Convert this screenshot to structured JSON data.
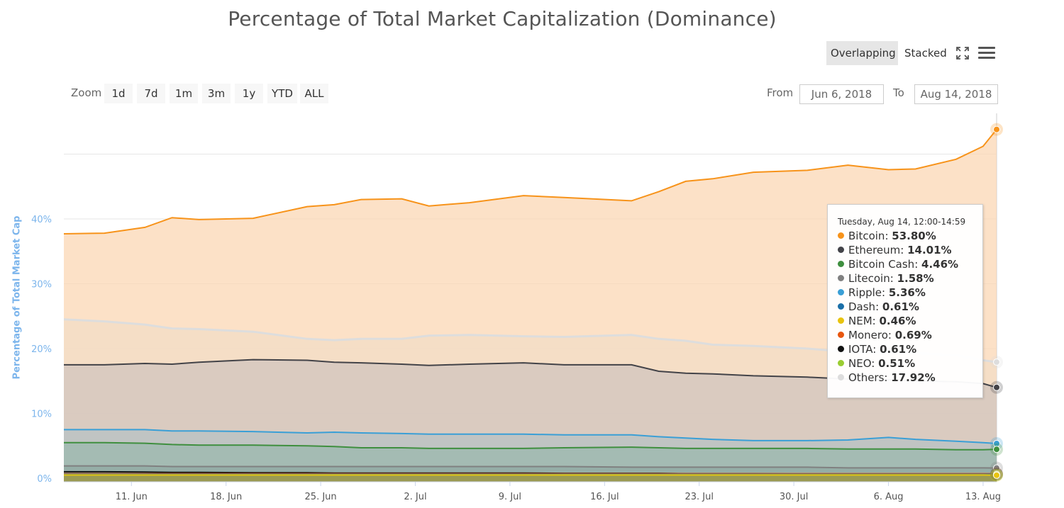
{
  "title": "Percentage of Total Market Capitalization (Dominance)",
  "modes": [
    {
      "label": "Overlapping",
      "active": true
    },
    {
      "label": "Stacked",
      "active": false
    }
  ],
  "zoom": {
    "label": "Zoom",
    "buttons": [
      "1d",
      "7d",
      "1m",
      "3m",
      "1y",
      "YTD",
      "ALL"
    ]
  },
  "range": {
    "from_label": "From",
    "from_value": "Jun 6, 2018",
    "to_label": "To",
    "to_value": "Aug 14, 2018"
  },
  "icons": [
    "fullscreen-icon",
    "menu-icon"
  ],
  "chart_data": {
    "type": "area",
    "ylabel": "Percentage of Total Market Cap",
    "ylim": [
      0,
      55
    ],
    "yticks": [
      "0%",
      "10%",
      "20%",
      "30%",
      "40%"
    ],
    "ytick_values": [
      0,
      10,
      20,
      30,
      40
    ],
    "x_start": "2018-06-06",
    "x_end": "2018-08-14",
    "xticks": [
      "11. Jun",
      "18. Jun",
      "25. Jun",
      "2. Jul",
      "9. Jul",
      "16. Jul",
      "23. Jul",
      "30. Jul",
      "6. Aug",
      "13. Aug"
    ],
    "xtick_dates": [
      "2018-06-11",
      "2018-06-18",
      "2018-06-25",
      "2018-07-02",
      "2018-07-09",
      "2018-07-16",
      "2018-07-23",
      "2018-07-30",
      "2018-08-06",
      "2018-08-13"
    ],
    "grid": true,
    "x": [
      "2018-06-06",
      "2018-06-09",
      "2018-06-12",
      "2018-06-14",
      "2018-06-16",
      "2018-06-20",
      "2018-06-24",
      "2018-06-26",
      "2018-06-28",
      "2018-07-01",
      "2018-07-03",
      "2018-07-06",
      "2018-07-10",
      "2018-07-13",
      "2018-07-18",
      "2018-07-20",
      "2018-07-22",
      "2018-07-24",
      "2018-07-27",
      "2018-07-31",
      "2018-08-03",
      "2018-08-06",
      "2018-08-08",
      "2018-08-11",
      "2018-08-13",
      "2018-08-14"
    ],
    "series": [
      {
        "name": "Bitcoin",
        "color": "#f7931a",
        "fill": "#fbd7b4",
        "values": [
          37.7,
          37.8,
          38.7,
          40.2,
          39.9,
          40.1,
          41.9,
          42.2,
          43.0,
          43.1,
          42.0,
          42.5,
          43.6,
          43.3,
          42.8,
          44.2,
          45.8,
          46.2,
          47.2,
          47.5,
          48.3,
          47.6,
          47.7,
          49.2,
          51.2,
          53.8
        ]
      },
      {
        "name": "Others",
        "color": "#dddddd",
        "fill": "#f3dcc6",
        "values": [
          24.5,
          24.2,
          23.7,
          23.1,
          23.0,
          22.6,
          21.5,
          21.3,
          21.5,
          21.5,
          22.0,
          22.1,
          21.9,
          21.8,
          22.1,
          21.5,
          21.2,
          20.6,
          20.4,
          20.0,
          19.5,
          19.4,
          19.3,
          19.0,
          18.2,
          17.92
        ]
      },
      {
        "name": "Ethereum",
        "color": "#434348",
        "fill": "#d0c4bd",
        "values": [
          17.5,
          17.5,
          17.7,
          17.6,
          17.9,
          18.3,
          18.2,
          17.9,
          17.8,
          17.6,
          17.4,
          17.6,
          17.8,
          17.5,
          17.5,
          16.5,
          16.2,
          16.1,
          15.8,
          15.6,
          15.3,
          15.2,
          15.0,
          14.9,
          14.6,
          14.01
        ]
      },
      {
        "name": "Ripple",
        "color": "#3a9fd6",
        "fill": "#b7c2c4",
        "values": [
          7.5,
          7.5,
          7.5,
          7.3,
          7.3,
          7.2,
          7.0,
          7.1,
          7.0,
          6.9,
          6.8,
          6.8,
          6.8,
          6.7,
          6.7,
          6.4,
          6.2,
          6.0,
          5.8,
          5.8,
          5.9,
          6.3,
          6.0,
          5.7,
          5.5,
          5.36
        ]
      },
      {
        "name": "Bitcoin Cash",
        "color": "#3f8f3f",
        "fill": "#9bb8ae",
        "values": [
          5.5,
          5.5,
          5.4,
          5.2,
          5.1,
          5.1,
          5.0,
          4.9,
          4.7,
          4.7,
          4.6,
          4.6,
          4.6,
          4.7,
          4.8,
          4.7,
          4.6,
          4.6,
          4.6,
          4.6,
          4.5,
          4.5,
          4.5,
          4.4,
          4.4,
          4.46
        ]
      },
      {
        "name": "Litecoin",
        "color": "#808080",
        "fill": "#90a9a3",
        "values": [
          1.9,
          1.9,
          1.9,
          1.8,
          1.8,
          1.8,
          1.8,
          1.8,
          1.8,
          1.8,
          1.8,
          1.8,
          1.8,
          1.8,
          1.7,
          1.7,
          1.7,
          1.7,
          1.7,
          1.7,
          1.6,
          1.6,
          1.6,
          1.6,
          1.6,
          1.58
        ]
      },
      {
        "name": "IOTA",
        "color": "#111111",
        "fill": "#7f9a95",
        "values": [
          1.0,
          1.0,
          0.95,
          0.9,
          0.9,
          0.85,
          0.85,
          0.8,
          0.8,
          0.8,
          0.8,
          0.8,
          0.8,
          0.75,
          0.75,
          0.75,
          0.7,
          0.7,
          0.7,
          0.65,
          0.65,
          0.65,
          0.65,
          0.6,
          0.6,
          0.61
        ]
      },
      {
        "name": "Monero",
        "color": "#e8560e",
        "fill": "#7f9a95",
        "values": [
          0.7,
          0.7,
          0.7,
          0.7,
          0.7,
          0.7,
          0.7,
          0.7,
          0.7,
          0.7,
          0.7,
          0.7,
          0.7,
          0.7,
          0.7,
          0.7,
          0.7,
          0.7,
          0.7,
          0.7,
          0.7,
          0.7,
          0.7,
          0.7,
          0.7,
          0.69
        ]
      },
      {
        "name": "Dash",
        "color": "#1a6fa8",
        "fill": "#7f9a95",
        "values": [
          0.6,
          0.6,
          0.6,
          0.6,
          0.6,
          0.6,
          0.6,
          0.6,
          0.6,
          0.6,
          0.6,
          0.6,
          0.6,
          0.6,
          0.6,
          0.6,
          0.6,
          0.6,
          0.6,
          0.6,
          0.6,
          0.6,
          0.6,
          0.6,
          0.6,
          0.61
        ]
      },
      {
        "name": "NEO",
        "color": "#9acd32",
        "fill": "#8f9c66",
        "values": [
          0.5,
          0.5,
          0.5,
          0.5,
          0.5,
          0.5,
          0.5,
          0.5,
          0.5,
          0.5,
          0.5,
          0.5,
          0.5,
          0.5,
          0.5,
          0.5,
          0.5,
          0.5,
          0.5,
          0.5,
          0.5,
          0.5,
          0.5,
          0.5,
          0.5,
          0.51
        ]
      },
      {
        "name": "NEM",
        "color": "#e8c30e",
        "fill": "#a09a4a",
        "values": [
          0.5,
          0.5,
          0.5,
          0.5,
          0.5,
          0.5,
          0.5,
          0.5,
          0.5,
          0.5,
          0.5,
          0.5,
          0.5,
          0.5,
          0.5,
          0.5,
          0.5,
          0.5,
          0.5,
          0.5,
          0.5,
          0.5,
          0.5,
          0.5,
          0.5,
          0.46
        ]
      }
    ],
    "tooltip": {
      "header": "Tuesday, Aug 14, 12:00-14:59",
      "rows": [
        {
          "name": "Bitcoin",
          "value": "53.80%",
          "color": "#f7931a"
        },
        {
          "name": "Ethereum",
          "value": "14.01%",
          "color": "#434348"
        },
        {
          "name": "Bitcoin Cash",
          "value": "4.46%",
          "color": "#3f8f3f"
        },
        {
          "name": "Litecoin",
          "value": "1.58%",
          "color": "#808080"
        },
        {
          "name": "Ripple",
          "value": "5.36%",
          "color": "#3a9fd6"
        },
        {
          "name": "Dash",
          "value": "0.61%",
          "color": "#1a6fa8"
        },
        {
          "name": "NEM",
          "value": "0.46%",
          "color": "#e8c30e"
        },
        {
          "name": "Monero",
          "value": "0.69%",
          "color": "#e8560e"
        },
        {
          "name": "IOTA",
          "value": "0.61%",
          "color": "#111111"
        },
        {
          "name": "NEO",
          "value": "0.51%",
          "color": "#9acd32"
        },
        {
          "name": "Others",
          "value": "17.92%",
          "color": "#dddddd"
        }
      ]
    }
  }
}
